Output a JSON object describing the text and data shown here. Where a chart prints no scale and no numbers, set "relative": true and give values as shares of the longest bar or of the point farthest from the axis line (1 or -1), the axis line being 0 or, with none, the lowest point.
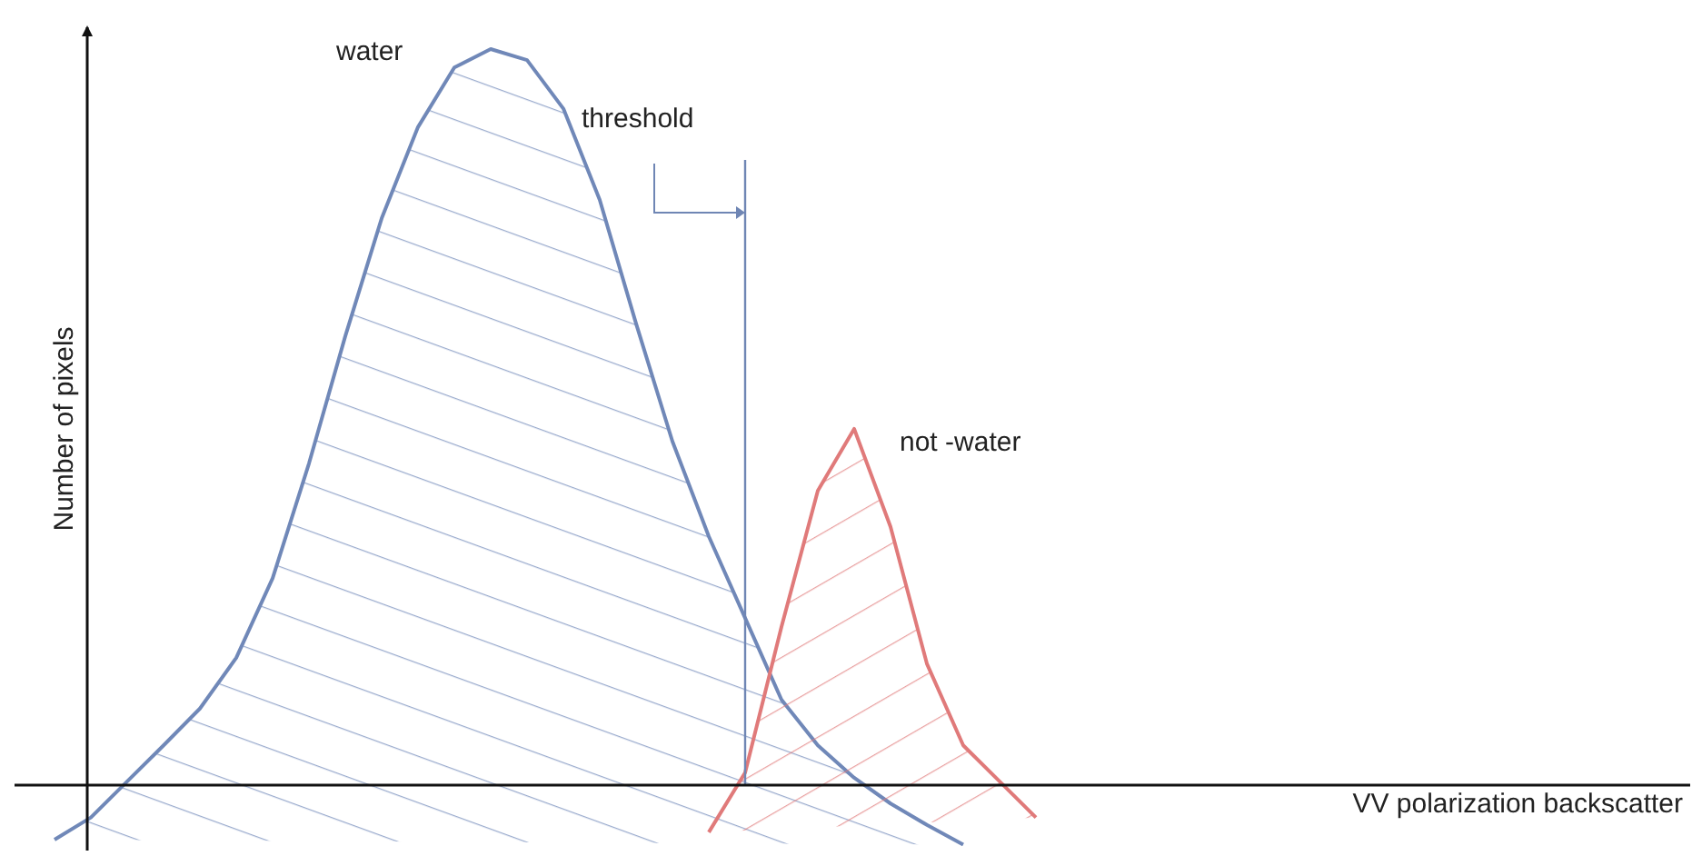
{
  "chart_data": {
    "type": "area",
    "relative": true,
    "ylabel": "Number of pixels",
    "annotations": [
      "threshold",
      "VV polarization backscatter"
    ],
    "categories": [
      null,
      null,
      null,
      null,
      null,
      null,
      null,
      null,
      null,
      null,
      null,
      null,
      null,
      null,
      null,
      null,
      null,
      null,
      null,
      null,
      null,
      null,
      null,
      null,
      null,
      null,
      null,
      null
    ],
    "series": [
      {
        "name": "water",
        "color": "#7088b8",
        "values": [
          -0.074,
          -0.044,
          0.005,
          0.054,
          0.104,
          0.173,
          0.281,
          0.437,
          0.61,
          0.77,
          0.894,
          0.975,
          1,
          0.985,
          0.919,
          0.795,
          0.627,
          0.467,
          0.338,
          0.227,
          0.116,
          0.054,
          0.01,
          -0.025,
          -0.054,
          -0.081,
          null,
          null
        ]
      },
      {
        "name": "not -water",
        "color": "#e07a7a",
        "values": [
          null,
          null,
          null,
          null,
          null,
          null,
          null,
          null,
          null,
          null,
          null,
          null,
          null,
          null,
          null,
          null,
          null,
          null,
          -0.064,
          0.017,
          0.215,
          0.4,
          0.484,
          0.351,
          0.165,
          0.054,
          0.005,
          -0.044
        ]
      }
    ]
  }
}
